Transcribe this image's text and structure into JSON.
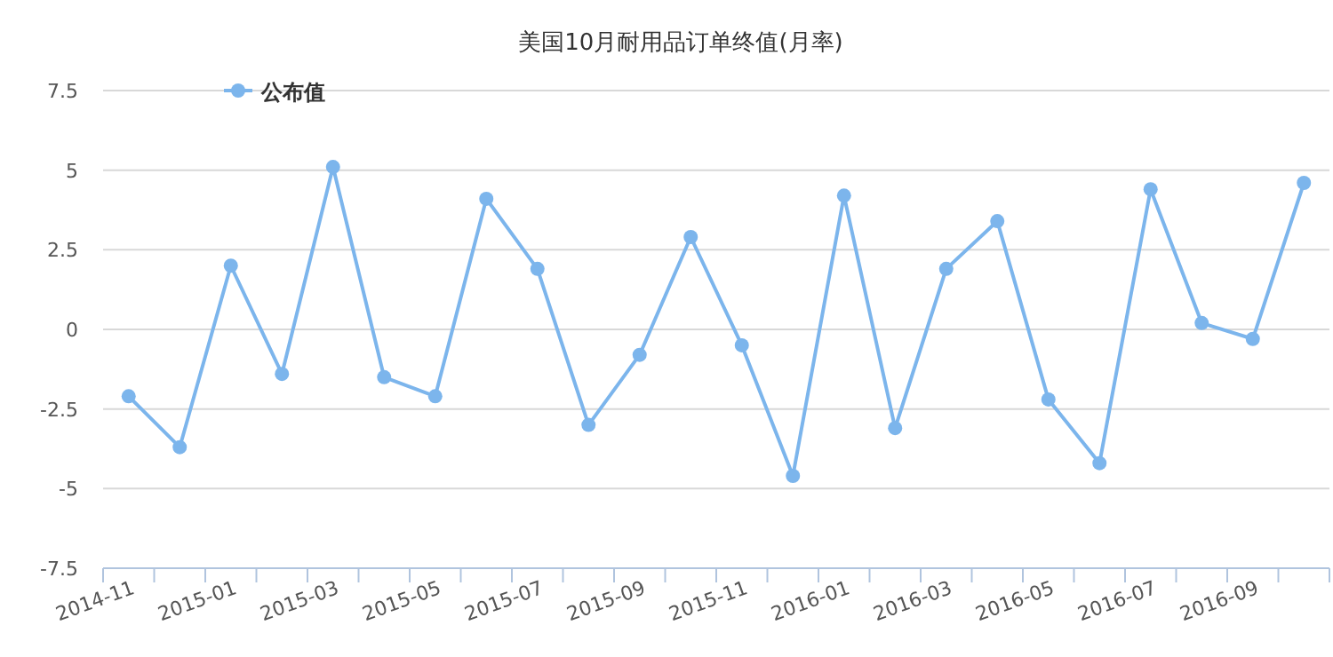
{
  "chart_data": {
    "type": "line",
    "title": "美国10月耐用品订单终值(月率)",
    "categories": [
      "2014-11",
      null,
      "2015-01",
      null,
      "2015-03",
      null,
      "2015-05",
      null,
      "2015-07",
      null,
      "2015-09",
      null,
      "2015-11",
      null,
      "2016-01",
      null,
      "2016-03",
      null,
      "2016-05",
      null,
      "2016-07",
      null,
      "2016-09",
      null
    ],
    "series": [
      {
        "name": "公布值",
        "color": "#7cb5ec",
        "values": [
          -2.1,
          -3.7,
          2.0,
          -1.4,
          5.1,
          -1.5,
          -2.1,
          4.1,
          1.9,
          -3.0,
          -0.8,
          2.9,
          -0.5,
          -4.6,
          4.2,
          -3.1,
          1.9,
          3.4,
          -2.2,
          -4.2,
          4.4,
          0.2,
          -0.3,
          4.6
        ]
      }
    ],
    "ylim": [
      -7.5,
      7.5
    ],
    "yticks": [
      7.5,
      5,
      2.5,
      0,
      -2.5,
      -5,
      -7.5
    ],
    "grid": "y",
    "legend": "top left",
    "marker": "circle",
    "line_style": "solid"
  }
}
